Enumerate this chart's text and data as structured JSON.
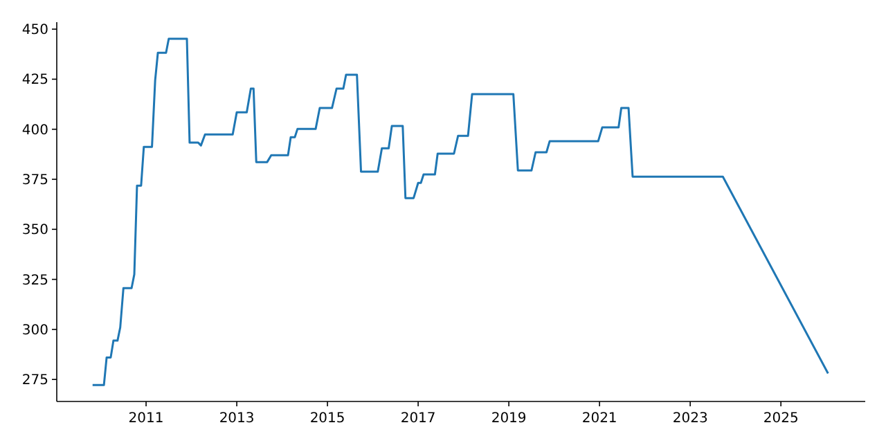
{
  "chart_data": {
    "type": "line",
    "xlim": [
      2009.03,
      2026.86
    ],
    "ylim": [
      264,
      453.5
    ],
    "xticks": [
      2011,
      2013,
      2015,
      2017,
      2019,
      2021,
      2023,
      2025
    ],
    "yticks": [
      275,
      300,
      325,
      350,
      375,
      400,
      425,
      450
    ],
    "grid": false,
    "series": [
      {
        "color": "#1f77b4",
        "x": [
          2009.82,
          2010.07,
          2010.13,
          2010.22,
          2010.28,
          2010.37,
          2010.43,
          2010.5,
          2010.68,
          2010.74,
          2010.8,
          2010.89,
          2010.95,
          2011.13,
          2011.2,
          2011.26,
          2011.44,
          2011.5,
          2011.9,
          2011.96,
          2012.15,
          2012.21,
          2012.3,
          2012.91,
          2013.0,
          2013.22,
          2013.31,
          2013.37,
          2013.43,
          2013.67,
          2013.76,
          2014.13,
          2014.19,
          2014.28,
          2014.34,
          2014.74,
          2014.83,
          2015.1,
          2015.2,
          2015.35,
          2015.41,
          2015.65,
          2015.74,
          2016.11,
          2016.2,
          2016.35,
          2016.42,
          2016.66,
          2016.72,
          2016.9,
          2017.0,
          2017.06,
          2017.12,
          2017.37,
          2017.43,
          2017.79,
          2017.88,
          2018.1,
          2018.19,
          2019.1,
          2019.2,
          2019.5,
          2019.59,
          2019.83,
          2019.9,
          2020.97,
          2021.06,
          2021.42,
          2021.48,
          2021.64,
          2021.73,
          2023.72,
          2026.04
        ],
        "values": [
          272.2,
          272.2,
          286,
          286,
          294.4,
          294.4,
          301,
          320.6,
          320.6,
          327.5,
          371.8,
          371.8,
          391.2,
          391.2,
          424.4,
          438.2,
          438.2,
          445.2,
          445.2,
          393.3,
          393.3,
          391.9,
          397.4,
          397.4,
          408.5,
          408.5,
          420.3,
          420.3,
          383.6,
          383.6,
          387,
          387,
          396,
          396,
          400.2,
          400.2,
          410.6,
          410.6,
          420.3,
          420.3,
          427.2,
          427.2,
          378.8,
          378.8,
          390.5,
          390.5,
          401.6,
          401.6,
          365.6,
          365.6,
          373.2,
          373.2,
          377.4,
          377.4,
          387.8,
          387.8,
          396.7,
          396.7,
          417.5,
          417.5,
          379.4,
          379.4,
          388.5,
          388.5,
          394,
          394,
          400.9,
          400.9,
          410.6,
          410.6,
          376.3,
          376.3,
          278
        ]
      }
    ]
  }
}
